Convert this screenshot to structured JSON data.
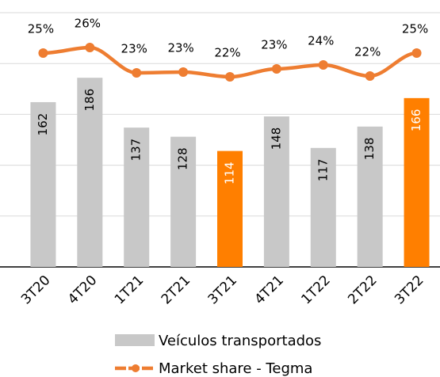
{
  "chart_data": {
    "type": "bar",
    "categories": [
      "3T20",
      "4T20",
      "1T21",
      "2T21",
      "3T21",
      "4T21",
      "1T22",
      "2T22",
      "3T22"
    ],
    "ylim": [
      0,
      250
    ],
    "yticks": [
      0,
      50,
      100,
      150,
      200,
      250
    ],
    "grid": true,
    "y2lim": [
      -1.6,
      30.5
    ],
    "series": [
      {
        "name": "Veículos transportados",
        "type": "bar",
        "color": "#c8c8c8",
        "colors": [
          "#c8c8c8",
          "#c8c8c8",
          "#c8c8c8",
          "#c8c8c8",
          "#ff7f00",
          "#c8c8c8",
          "#c8c8c8",
          "#c8c8c8",
          "#ff7f00"
        ],
        "values": [
          162,
          186,
          137,
          128,
          114,
          148,
          117,
          138,
          166
        ]
      },
      {
        "name": "Market share - Tegma",
        "type": "line",
        "axis": "y2",
        "color": "#ee7d31",
        "values": [
          25.4,
          26.1,
          22.9,
          23.0,
          22.4,
          23.4,
          23.9,
          22.5,
          25.4
        ],
        "value_labels": [
          "25%",
          "26%",
          "23%",
          "23%",
          "22%",
          "23%",
          "24%",
          "22%",
          "25%"
        ]
      }
    ]
  }
}
